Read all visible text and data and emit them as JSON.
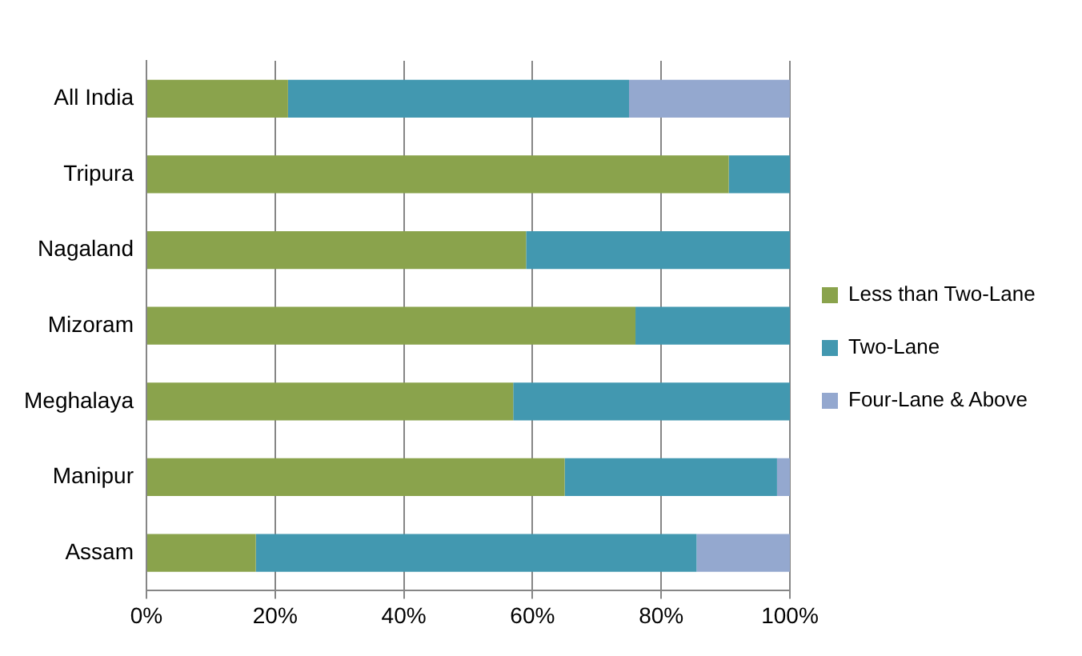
{
  "chart_data": {
    "type": "bar",
    "orientation": "horizontal",
    "stacked": true,
    "categories": [
      "All India",
      "Tripura",
      "Nagaland",
      "Mizoram",
      "Meghalaya",
      "Manipur",
      "Assam"
    ],
    "series": [
      {
        "name": "Less than Two-Lane",
        "color": "#8aa34c",
        "values": [
          22,
          90.5,
          59,
          76,
          57,
          65,
          17
        ]
      },
      {
        "name": "Two-Lane",
        "color": "#4298b0",
        "values": [
          53,
          9.5,
          41,
          24,
          43,
          33,
          68.5
        ]
      },
      {
        "name": "Four-Lane & Above",
        "color": "#94a8cf",
        "values": [
          25,
          0,
          0,
          0,
          0,
          2,
          14.5
        ]
      }
    ],
    "xlim": [
      0,
      100
    ],
    "xticks": [
      {
        "value": 0,
        "label": "0%"
      },
      {
        "value": 20,
        "label": "20%"
      },
      {
        "value": 40,
        "label": "40%"
      },
      {
        "value": 60,
        "label": "60%"
      },
      {
        "value": 80,
        "label": "80%"
      },
      {
        "value": 100,
        "label": "100%"
      }
    ],
    "grid": "x",
    "legend": "right"
  }
}
